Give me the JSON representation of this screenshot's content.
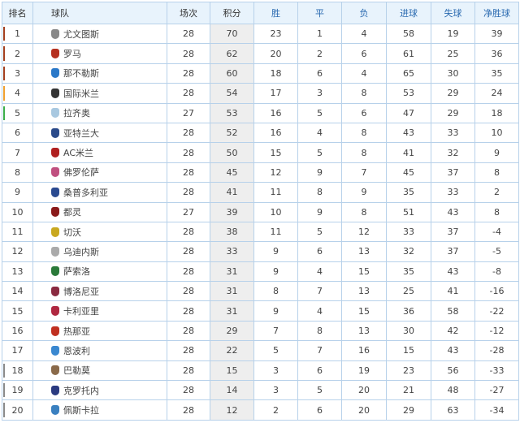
{
  "headers": [
    "排名",
    "球队",
    "场次",
    "积分",
    "胜",
    "平",
    "负",
    "进球",
    "失球",
    "净胜球"
  ],
  "zone_colors": {
    "champions": "#a3401f",
    "europa": "#f0a030",
    "qualifier": "#3cae4a",
    "relegation": "#8a8a8a"
  },
  "rows": [
    {
      "rank": "1",
      "team": "尤文图斯",
      "played": "28",
      "pts": "70",
      "w": "23",
      "d": "1",
      "l": "4",
      "gf": "58",
      "ga": "19",
      "gd": "39",
      "zone": "champions",
      "icon_color": "#888888"
    },
    {
      "rank": "2",
      "team": "罗马",
      "played": "28",
      "pts": "62",
      "w": "20",
      "d": "2",
      "l": "6",
      "gf": "61",
      "ga": "25",
      "gd": "36",
      "zone": "champions",
      "icon_color": "#b5301f"
    },
    {
      "rank": "3",
      "team": "那不勒斯",
      "played": "28",
      "pts": "60",
      "w": "18",
      "d": "6",
      "l": "4",
      "gf": "65",
      "ga": "30",
      "gd": "35",
      "zone": "champions",
      "icon_color": "#2a78c8"
    },
    {
      "rank": "4",
      "team": "国际米兰",
      "played": "28",
      "pts": "54",
      "w": "17",
      "d": "3",
      "l": "8",
      "gf": "53",
      "ga": "29",
      "gd": "24",
      "zone": "europa",
      "icon_color": "#333333"
    },
    {
      "rank": "5",
      "team": "拉齐奥",
      "played": "27",
      "pts": "53",
      "w": "16",
      "d": "5",
      "l": "6",
      "gf": "47",
      "ga": "29",
      "gd": "18",
      "zone": "qualifier",
      "icon_color": "#a8c8e0"
    },
    {
      "rank": "6",
      "team": "亚特兰大",
      "played": "28",
      "pts": "52",
      "w": "16",
      "d": "4",
      "l": "8",
      "gf": "43",
      "ga": "33",
      "gd": "10",
      "zone": "",
      "icon_color": "#2a4a8a"
    },
    {
      "rank": "7",
      "team": "AC米兰",
      "played": "28",
      "pts": "50",
      "w": "15",
      "d": "5",
      "l": "8",
      "gf": "41",
      "ga": "32",
      "gd": "9",
      "zone": "",
      "icon_color": "#b02020"
    },
    {
      "rank": "8",
      "team": "佛罗伦萨",
      "played": "28",
      "pts": "45",
      "w": "12",
      "d": "9",
      "l": "7",
      "gf": "45",
      "ga": "37",
      "gd": "8",
      "zone": "",
      "icon_color": "#c05080"
    },
    {
      "rank": "9",
      "team": "桑普多利亚",
      "played": "28",
      "pts": "41",
      "w": "11",
      "d": "8",
      "l": "9",
      "gf": "35",
      "ga": "33",
      "gd": "2",
      "zone": "",
      "icon_color": "#2a4a90"
    },
    {
      "rank": "10",
      "team": "都灵",
      "played": "27",
      "pts": "39",
      "w": "10",
      "d": "9",
      "l": "8",
      "gf": "51",
      "ga": "43",
      "gd": "8",
      "zone": "",
      "icon_color": "#8a1a1a"
    },
    {
      "rank": "11",
      "team": "切沃",
      "played": "28",
      "pts": "38",
      "w": "11",
      "d": "5",
      "l": "12",
      "gf": "33",
      "ga": "37",
      "gd": "-4",
      "zone": "",
      "icon_color": "#c8a820"
    },
    {
      "rank": "12",
      "team": "乌迪内斯",
      "played": "28",
      "pts": "33",
      "w": "9",
      "d": "6",
      "l": "13",
      "gf": "32",
      "ga": "37",
      "gd": "-5",
      "zone": "",
      "icon_color": "#aaaaaa"
    },
    {
      "rank": "13",
      "team": "萨索洛",
      "played": "28",
      "pts": "31",
      "w": "9",
      "d": "4",
      "l": "15",
      "gf": "35",
      "ga": "43",
      "gd": "-8",
      "zone": "",
      "icon_color": "#2a7a3a"
    },
    {
      "rank": "14",
      "team": "博洛尼亚",
      "played": "28",
      "pts": "31",
      "w": "8",
      "d": "7",
      "l": "13",
      "gf": "25",
      "ga": "41",
      "gd": "-16",
      "zone": "",
      "icon_color": "#8a2a40"
    },
    {
      "rank": "15",
      "team": "卡利亚里",
      "played": "28",
      "pts": "31",
      "w": "9",
      "d": "4",
      "l": "15",
      "gf": "36",
      "ga": "58",
      "gd": "-22",
      "zone": "",
      "icon_color": "#b02840"
    },
    {
      "rank": "16",
      "team": "热那亚",
      "played": "28",
      "pts": "29",
      "w": "7",
      "d": "8",
      "l": "13",
      "gf": "30",
      "ga": "42",
      "gd": "-12",
      "zone": "",
      "icon_color": "#c03020"
    },
    {
      "rank": "17",
      "team": "恩波利",
      "played": "28",
      "pts": "22",
      "w": "5",
      "d": "7",
      "l": "16",
      "gf": "15",
      "ga": "43",
      "gd": "-28",
      "zone": "",
      "icon_color": "#3a88d0"
    },
    {
      "rank": "18",
      "team": "巴勒莫",
      "played": "28",
      "pts": "15",
      "w": "3",
      "d": "6",
      "l": "19",
      "gf": "23",
      "ga": "56",
      "gd": "-33",
      "zone": "relegation",
      "icon_color": "#8a6a4a"
    },
    {
      "rank": "19",
      "team": "克罗托内",
      "played": "28",
      "pts": "14",
      "w": "3",
      "d": "5",
      "l": "20",
      "gf": "21",
      "ga": "48",
      "gd": "-27",
      "zone": "relegation",
      "icon_color": "#2a3a80"
    },
    {
      "rank": "20",
      "team": "佩斯卡拉",
      "played": "28",
      "pts": "12",
      "w": "2",
      "d": "6",
      "l": "20",
      "gf": "29",
      "ga": "63",
      "gd": "-34",
      "zone": "relegation",
      "icon_color": "#3a80c0"
    }
  ]
}
